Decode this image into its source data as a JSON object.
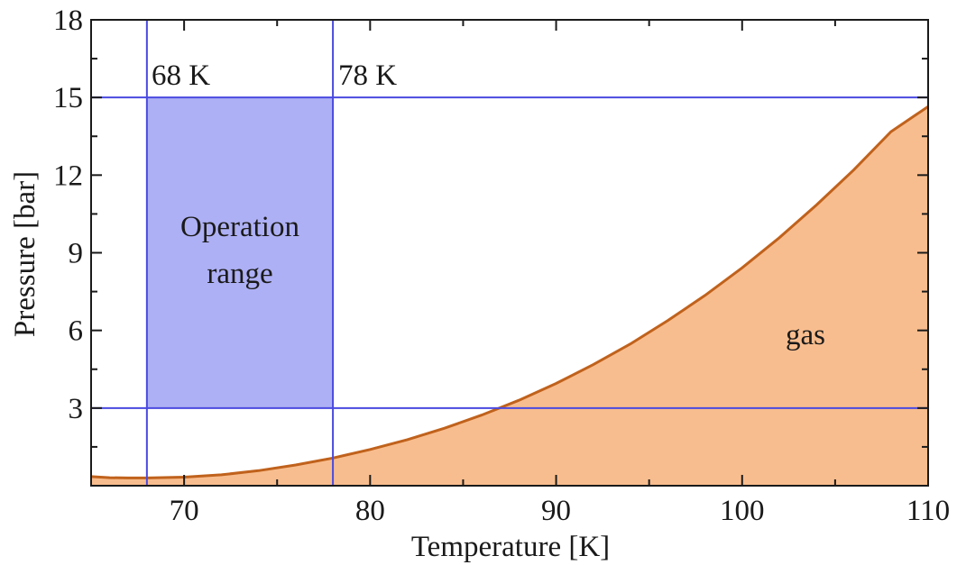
{
  "chart_data": {
    "type": "area",
    "xlabel": "Temperature [K]",
    "ylabel": "Pressure [bar]",
    "xlim": [
      65,
      110
    ],
    "ylim": [
      0,
      18
    ],
    "x_ticks": [
      70,
      80,
      90,
      100,
      110
    ],
    "y_ticks": [
      3,
      6,
      9,
      12,
      15,
      18
    ],
    "x_minor_step": 5,
    "y_minor_step": 1.5,
    "grid": false,
    "series": [
      {
        "name": "gas",
        "color": "#f8bd8e",
        "line_color": "#c0621c",
        "x": [
          65,
          66,
          67,
          68,
          70,
          72,
          74,
          76,
          78,
          80,
          82,
          84,
          86,
          88,
          90,
          92,
          94,
          96,
          98,
          100,
          102,
          104,
          106,
          108,
          110
        ],
        "y": [
          0.35,
          0.31,
          0.3,
          0.3,
          0.33,
          0.42,
          0.58,
          0.8,
          1.07,
          1.4,
          1.78,
          2.22,
          2.73,
          3.3,
          3.95,
          4.68,
          5.48,
          6.38,
          7.35,
          8.42,
          9.58,
          10.85,
          12.2,
          13.68,
          14.65
        ]
      }
    ],
    "shaded_region": {
      "x_range": [
        68,
        78
      ],
      "y_range": [
        3,
        15
      ],
      "fill": "#aeb0f5",
      "line_color": "#4a4ae0"
    },
    "reference_lines": {
      "x": [
        68,
        78
      ],
      "y": [
        3,
        15
      ],
      "color": "#4a4ae0"
    },
    "annotations": {
      "t68": "68 K",
      "t78": "78 K",
      "operation_line1": "Operation",
      "operation_line2": "range",
      "gas": "gas"
    }
  }
}
